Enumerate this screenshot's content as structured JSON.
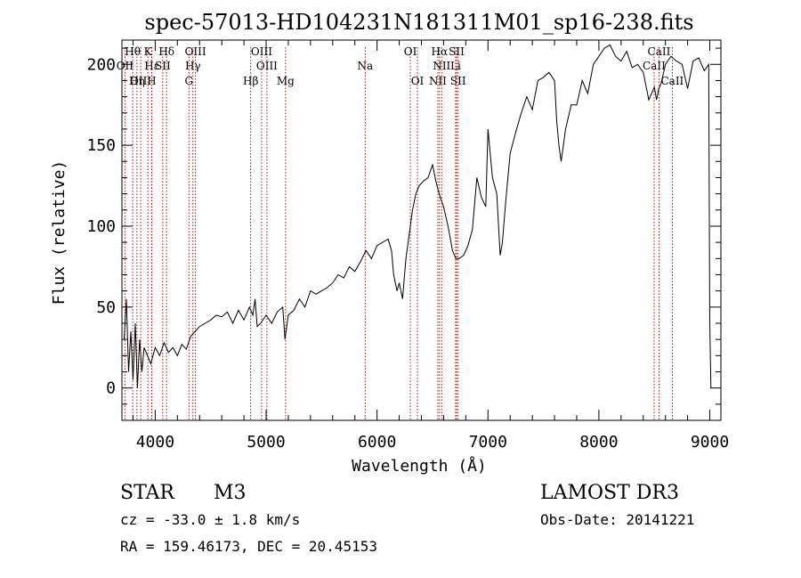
{
  "chart_data": {
    "type": "line",
    "title": "spec-57013-HD104231N181311M01_sp16-238.fits",
    "xlabel": "Wavelength (Å)",
    "ylabel": "Flux (relative)",
    "xlim": [
      3700,
      9100
    ],
    "ylim": [
      -20,
      215
    ],
    "xticks": [
      4000,
      5000,
      6000,
      7000,
      8000,
      9000
    ],
    "yticks": [
      0,
      50,
      100,
      150,
      200
    ],
    "series": [
      {
        "name": "spectrum",
        "x": [
          3720,
          3740,
          3760,
          3780,
          3800,
          3820,
          3840,
          3860,
          3880,
          3900,
          3930,
          3960,
          4000,
          4040,
          4080,
          4120,
          4160,
          4200,
          4240,
          4280,
          4320,
          4360,
          4400,
          4450,
          4500,
          4550,
          4600,
          4650,
          4700,
          4750,
          4800,
          4850,
          4880,
          4900,
          4920,
          4950,
          5000,
          5050,
          5100,
          5150,
          5170,
          5200,
          5250,
          5300,
          5350,
          5400,
          5450,
          5500,
          5550,
          5600,
          5650,
          5700,
          5750,
          5800,
          5850,
          5900,
          5950,
          6000,
          6050,
          6100,
          6130,
          6150,
          6180,
          6200,
          6230,
          6260,
          6290,
          6320,
          6350,
          6380,
          6420,
          6460,
          6500,
          6530,
          6560,
          6600,
          6640,
          6680,
          6710,
          6740,
          6780,
          6820,
          6860,
          6900,
          6940,
          6980,
          7000,
          7040,
          7080,
          7110,
          7130,
          7160,
          7200,
          7250,
          7300,
          7350,
          7400,
          7450,
          7500,
          7550,
          7600,
          7620,
          7640,
          7660,
          7700,
          7750,
          7800,
          7850,
          7900,
          7950,
          8000,
          8050,
          8100,
          8150,
          8200,
          8250,
          8300,
          8350,
          8400,
          8450,
          8500,
          8520,
          8540,
          8560,
          8600,
          8650,
          8700,
          8750,
          8800,
          8850,
          8900,
          8950,
          8990,
          9000,
          9010
        ],
        "y": [
          30,
          55,
          10,
          35,
          5,
          40,
          0,
          30,
          10,
          25,
          20,
          15,
          25,
          20,
          28,
          22,
          25,
          20,
          27,
          24,
          32,
          35,
          38,
          40,
          42,
          45,
          44,
          47,
          40,
          48,
          42,
          50,
          45,
          55,
          38,
          40,
          45,
          40,
          47,
          50,
          30,
          45,
          48,
          55,
          50,
          60,
          58,
          60,
          62,
          65,
          70,
          68,
          75,
          72,
          78,
          85,
          80,
          88,
          90,
          92,
          85,
          70,
          60,
          65,
          55,
          80,
          95,
          110,
          120,
          125,
          128,
          130,
          138,
          128,
          120,
          112,
          100,
          85,
          80,
          80,
          82,
          88,
          98,
          130,
          118,
          112,
          160,
          130,
          120,
          82,
          90,
          115,
          145,
          158,
          170,
          180,
          172,
          190,
          192,
          195,
          190,
          165,
          150,
          140,
          160,
          175,
          175,
          190,
          182,
          200,
          205,
          210,
          212,
          205,
          202,
          208,
          198,
          200,
          195,
          178,
          186,
          178,
          185,
          188,
          200,
          205,
          202,
          200,
          185,
          202,
          204,
          196,
          200,
          40,
          0
        ]
      }
    ],
    "lines": [
      {
        "label": "Hθ",
        "wl": 3797,
        "row": 0
      },
      {
        "label": "K",
        "wl": 3934,
        "row": 0
      },
      {
        "label": "Hδ",
        "wl": 4102,
        "row": 0
      },
      {
        "label": "OIII",
        "wl": 4363,
        "row": 0
      },
      {
        "label": "OIII",
        "wl": 4959,
        "row": 0
      },
      {
        "label": "OI",
        "wl": 6300,
        "row": 0
      },
      {
        "label": "Hα",
        "wl": 6563,
        "row": 0
      },
      {
        "label": "SII",
        "wl": 6717,
        "row": 0
      },
      {
        "label": "CaII",
        "wl": 8542,
        "row": 0
      },
      {
        "label": "OII",
        "wl": 3727,
        "row": 1
      },
      {
        "label": "Hε",
        "wl": 3970,
        "row": 1
      },
      {
        "label": "SII",
        "wl": 4068,
        "row": 1
      },
      {
        "label": "Hγ",
        "wl": 4340,
        "row": 1
      },
      {
        "label": "OIII",
        "wl": 5007,
        "row": 1
      },
      {
        "label": "Na",
        "wl": 5893,
        "row": 1
      },
      {
        "label": "NII",
        "wl": 6583,
        "row": 1
      },
      {
        "label": "Li",
        "wl": 6708,
        "row": 1
      },
      {
        "label": "CaII",
        "wl": 8498,
        "row": 1
      },
      {
        "label": "OIII",
        "wl": 3869,
        "row": 2
      },
      {
        "label": "Hη",
        "wl": 3835,
        "row": 2
      },
      {
        "label": "H",
        "wl": 3968,
        "row": 2
      },
      {
        "label": "G",
        "wl": 4304,
        "row": 2
      },
      {
        "label": "Hβ",
        "wl": 4861,
        "row": 2
      },
      {
        "label": "Mg",
        "wl": 5175,
        "row": 2
      },
      {
        "label": "OI",
        "wl": 6364,
        "row": 2
      },
      {
        "label": "NII",
        "wl": 6548,
        "row": 2
      },
      {
        "label": "SII",
        "wl": 6731,
        "row": 2
      },
      {
        "label": "CaII",
        "wl": 8662,
        "row": 2
      }
    ]
  },
  "info": {
    "class_label": "STAR",
    "subclass": "M3",
    "survey": "LAMOST DR3",
    "cz": "cz = -33.0 ± 1.8 km/s",
    "obs_date": "Obs-Date: 20141221",
    "coords": "RA = 159.46173, DEC =  20.45153"
  }
}
